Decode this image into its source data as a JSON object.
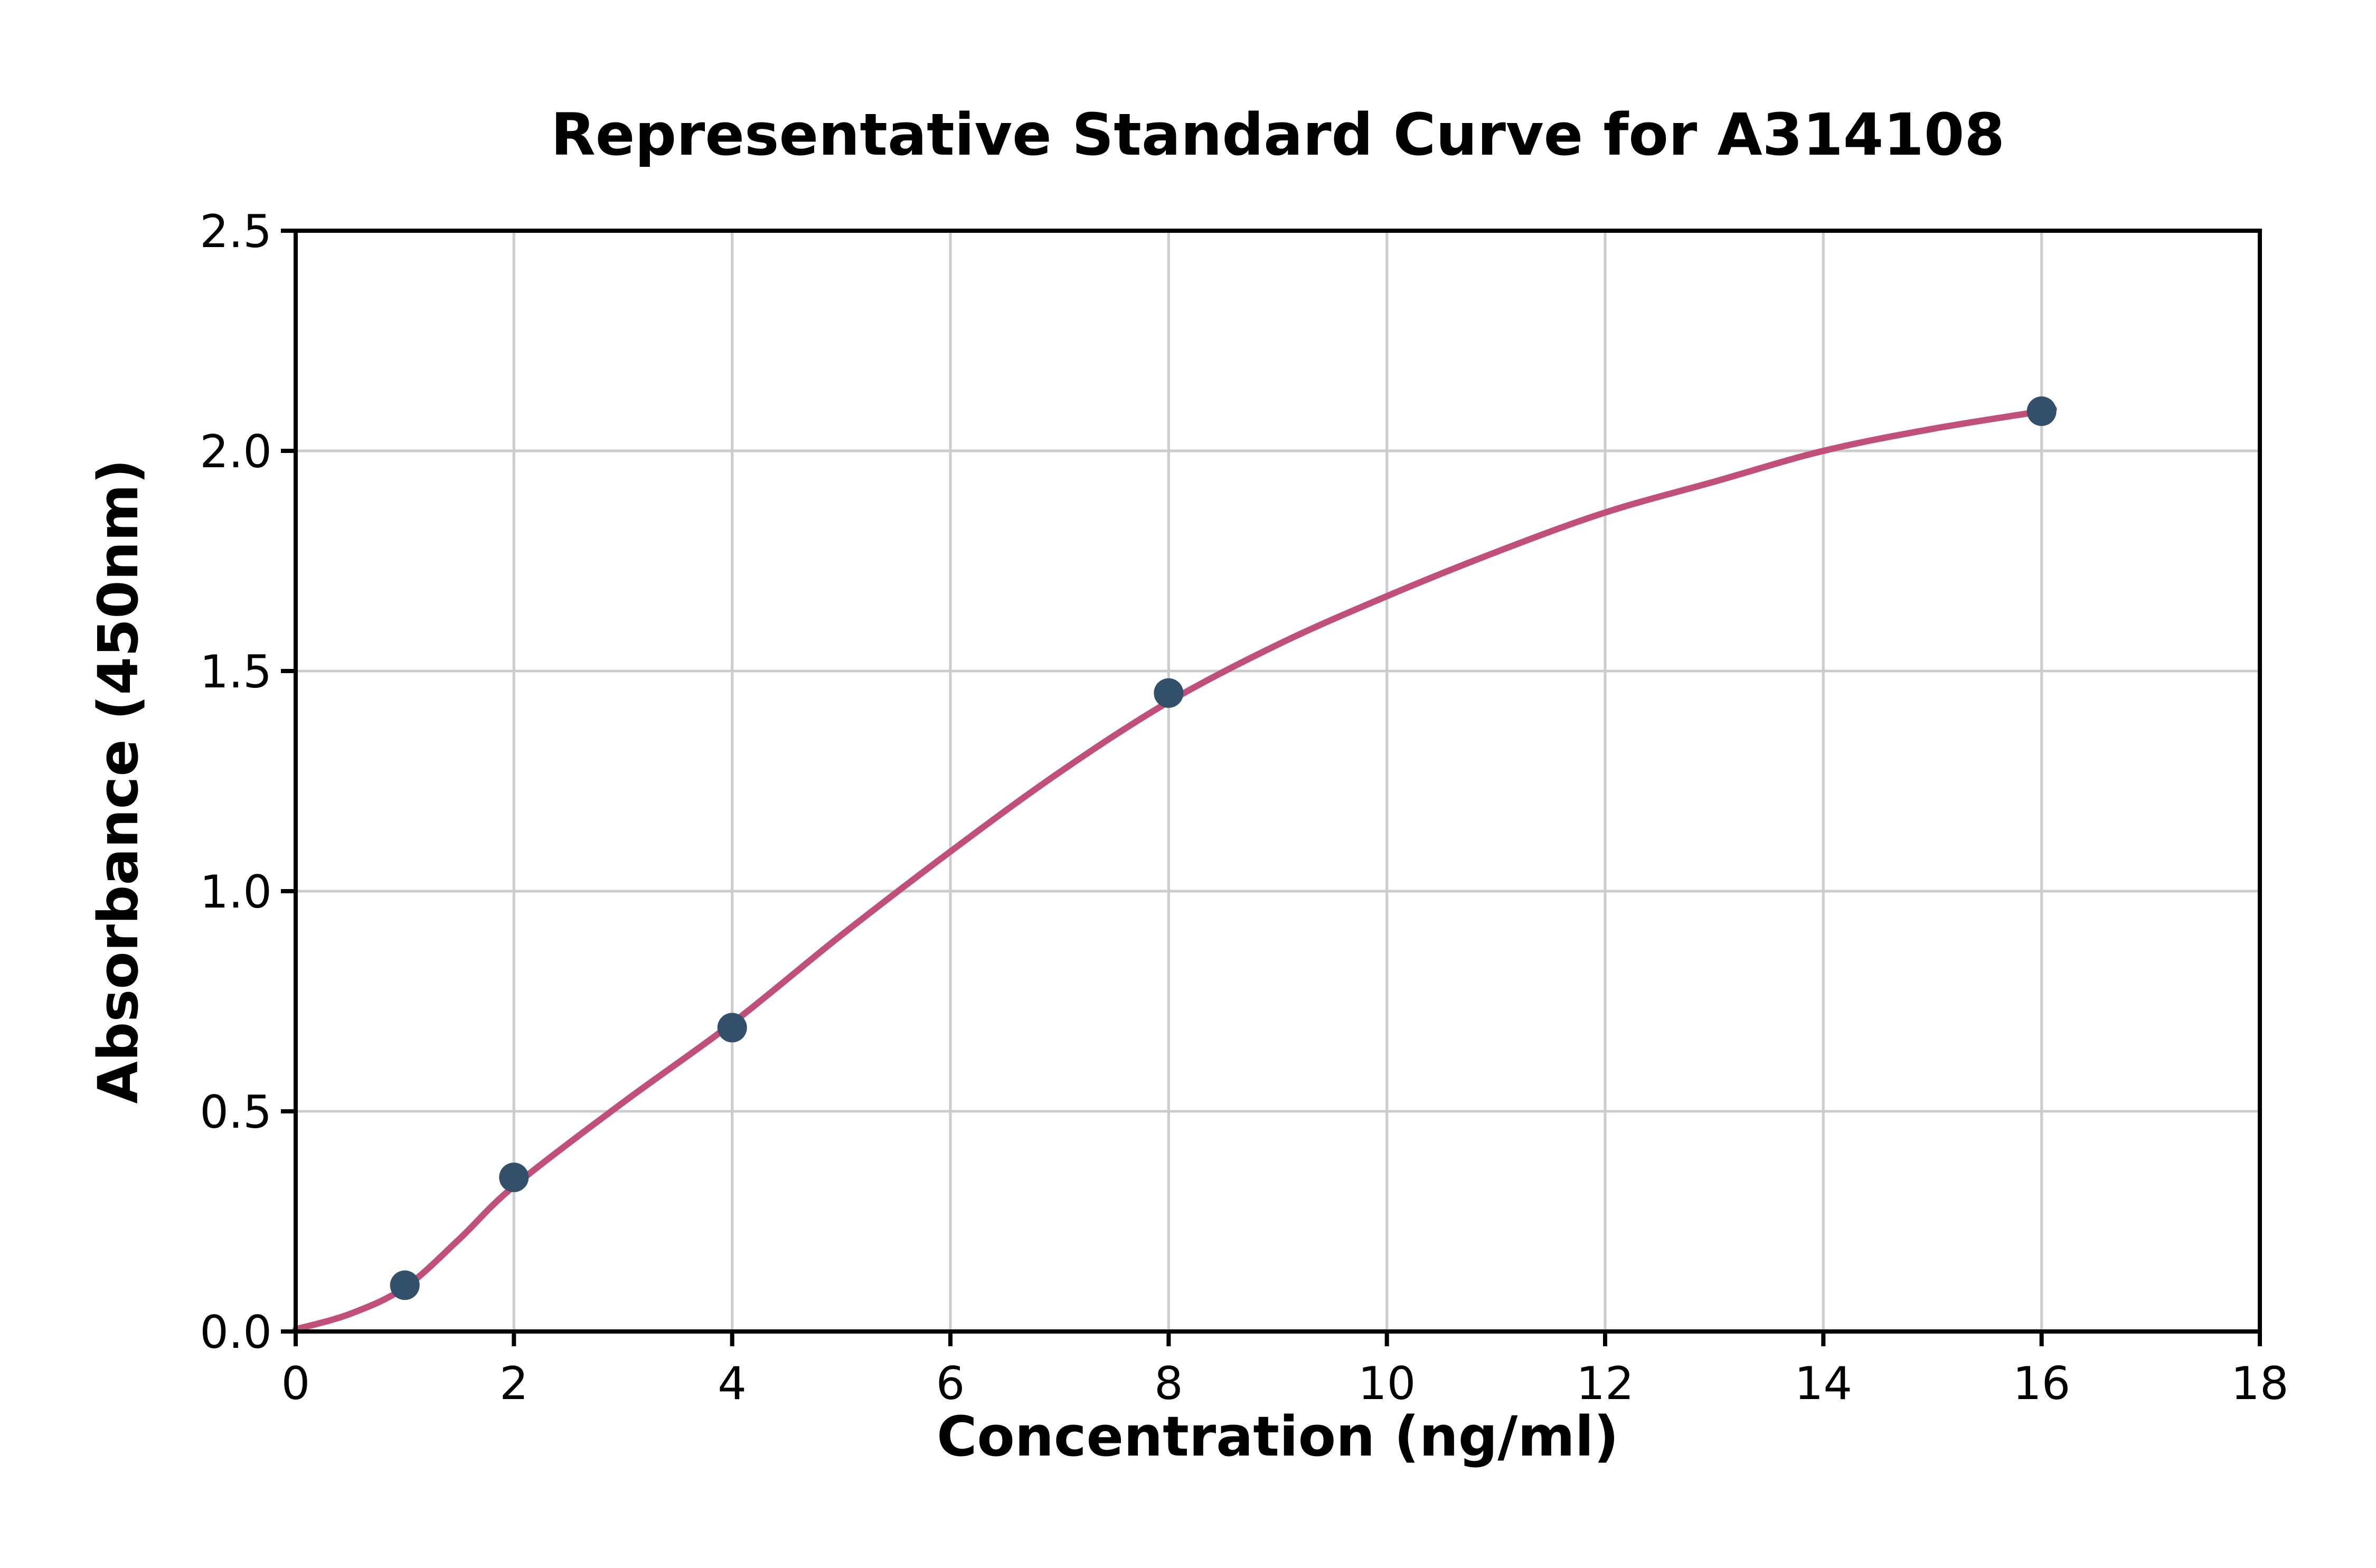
{
  "chart_data": {
    "type": "scatter",
    "title": "Representative Standard Curve for A314108",
    "xlabel": "Concentration (ng/ml)",
    "ylabel": "Absorbance (450nm)",
    "xlim": [
      0,
      18
    ],
    "ylim": [
      0,
      2.5
    ],
    "xticks": [
      0,
      2,
      4,
      6,
      8,
      10,
      12,
      14,
      16,
      18
    ],
    "xtick_labels": [
      "0",
      "2",
      "4",
      "6",
      "8",
      "10",
      "12",
      "14",
      "16",
      "18"
    ],
    "yticks": [
      0,
      0.5,
      1,
      1.5,
      2,
      2.5
    ],
    "ytick_labels": [
      "0.0",
      "0.5",
      "1.0",
      "1.5",
      "2.0",
      "2.5"
    ],
    "grid": true,
    "legend": "none",
    "series": [
      {
        "name": "standard-points",
        "type": "scatter",
        "x": [
          1,
          2,
          4,
          8,
          16
        ],
        "y": [
          0.105,
          0.35,
          0.69,
          1.45,
          2.09
        ]
      },
      {
        "name": "fitted-curve",
        "type": "line",
        "x": [
          0,
          0.5,
          1,
          1.5,
          2,
          3,
          4,
          5,
          6,
          7,
          8,
          9,
          10,
          11,
          12,
          13,
          14,
          15,
          16,
          16.1
        ],
        "y": [
          0.005,
          0.04,
          0.1,
          0.21,
          0.33,
          0.52,
          0.7,
          0.9,
          1.09,
          1.27,
          1.43,
          1.56,
          1.67,
          1.77,
          1.86,
          1.93,
          2.0,
          2.05,
          2.09,
          2.095
        ]
      }
    ],
    "colors": {
      "curve": "#c0507a",
      "points": "#33506b",
      "grid": "#cccccc",
      "axis": "#000000",
      "background": "#ffffff"
    }
  }
}
